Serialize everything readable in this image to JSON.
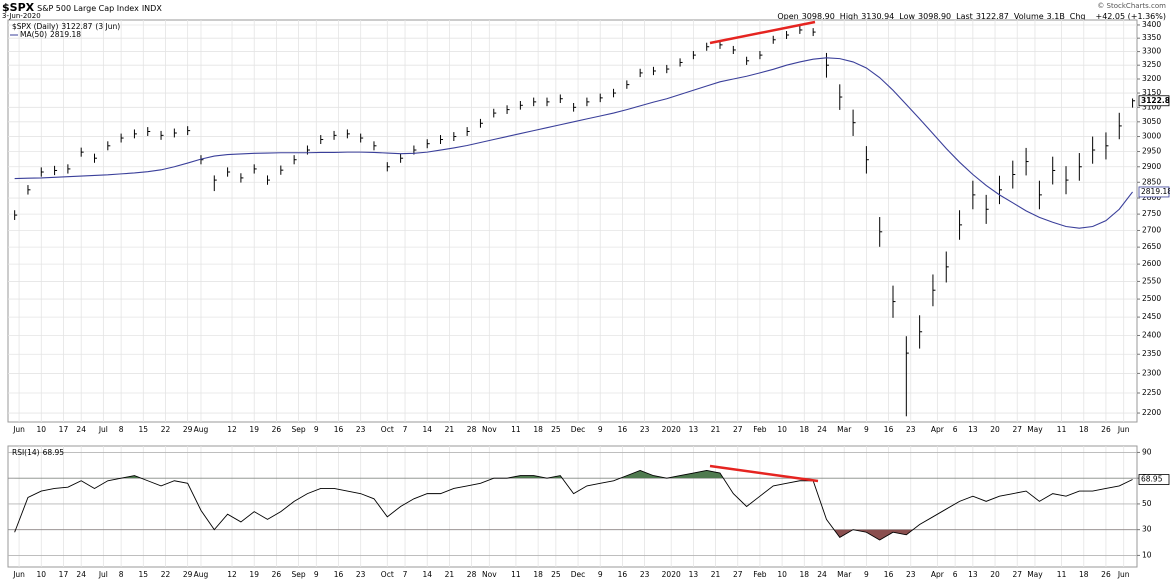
{
  "header": {
    "symbol": "$SPX",
    "name": "S&P 500 Large Cap Index",
    "exchange": "INDX",
    "date": "3-Jun-2020",
    "quote": [
      [
        "Open",
        "3098.90"
      ],
      [
        "High",
        "3130.94"
      ],
      [
        "Low",
        "3098.90"
      ],
      [
        "Last",
        "3122.87"
      ],
      [
        "Volume",
        "3.1B"
      ],
      [
        "Chg",
        "+42.05 (+1.36%)"
      ]
    ],
    "credit": "© StockCharts.com"
  },
  "chart_data": [
    {
      "type": "ohlc",
      "log_scale": true,
      "grid": true,
      "grid_color": "#e4e4e4",
      "last_date": "(3 Jun)",
      "x": [
        0,
        3,
        6,
        9,
        12,
        15,
        18,
        21,
        24,
        27,
        30,
        33,
        36,
        39,
        42,
        45,
        48,
        51,
        54,
        57,
        60,
        63,
        66,
        69,
        72,
        75,
        78,
        81,
        84,
        87,
        90,
        93,
        96,
        99,
        102,
        105,
        108,
        111,
        114,
        117,
        120,
        123,
        126,
        129,
        132,
        135,
        138,
        141,
        144,
        147,
        150,
        153,
        156,
        159,
        162,
        165,
        168,
        171,
        174,
        177,
        180,
        183,
        186,
        189,
        192,
        195,
        198,
        201,
        204,
        207,
        210,
        213,
        216,
        219,
        222,
        225,
        228,
        231,
        234,
        237,
        240,
        243,
        246,
        249,
        252
      ],
      "series": [
        {
          "name": "$SPX (Daily)",
          "color": "#000000",
          "high": [
            2762,
            2841,
            2898,
            2903,
            2908,
            2963,
            2943,
            2984,
            3010,
            3024,
            3032,
            3019,
            3027,
            3035,
            2938,
            2872,
            2898,
            2879,
            2908,
            2872,
            2904,
            2938,
            2970,
            3005,
            3019,
            3024,
            3010,
            2984,
            2915,
            2943,
            2970,
            2991,
            3005,
            3015,
            3032,
            3060,
            3095,
            3107,
            3122,
            3134,
            3134,
            3145,
            3115,
            3134,
            3148,
            3165,
            3195,
            3237,
            3244,
            3251,
            3275,
            3302,
            3333,
            3340,
            3321,
            3281,
            3302,
            3359,
            3377,
            3396,
            3388,
            3295,
            3181,
            3092,
            2968,
            2741,
            2538,
            2398,
            2455,
            2570,
            2637,
            2762,
            2855,
            2810,
            2871,
            2920,
            2962,
            2855,
            2933,
            2902,
            2945,
            3000,
            3014,
            3081,
            3130.94
          ],
          "low": [
            2732,
            2811,
            2868,
            2873,
            2878,
            2933,
            2913,
            2954,
            2980,
            2994,
            3002,
            2989,
            2997,
            3005,
            2908,
            2822,
            2868,
            2849,
            2878,
            2842,
            2874,
            2908,
            2940,
            2975,
            2989,
            2994,
            2980,
            2954,
            2885,
            2913,
            2940,
            2961,
            2975,
            2985,
            3002,
            3030,
            3065,
            3077,
            3092,
            3104,
            3104,
            3115,
            3085,
            3104,
            3118,
            3135,
            3165,
            3207,
            3214,
            3221,
            3245,
            3272,
            3303,
            3310,
            3291,
            3251,
            3272,
            3329,
            3347,
            3366,
            3358,
            3205,
            3091,
            3002,
            2878,
            2651,
            2448,
            2192,
            2365,
            2480,
            2547,
            2672,
            2765,
            2720,
            2781,
            2830,
            2872,
            2765,
            2843,
            2812,
            2855,
            2910,
            2924,
            2991,
            3098.9
          ],
          "close": [
            2747,
            2826,
            2883,
            2888,
            2893,
            2948,
            2928,
            2969,
            2995,
            3009,
            3017,
            3004,
            3012,
            3020,
            2923,
            2857,
            2883,
            2864,
            2893,
            2857,
            2889,
            2923,
            2955,
            2990,
            3004,
            3009,
            2995,
            2969,
            2900,
            2928,
            2955,
            2976,
            2990,
            3000,
            3017,
            3045,
            3080,
            3092,
            3107,
            3119,
            3119,
            3130,
            3100,
            3119,
            3133,
            3150,
            3180,
            3222,
            3229,
            3236,
            3260,
            3287,
            3318,
            3325,
            3306,
            3266,
            3287,
            3344,
            3362,
            3381,
            3373,
            3250,
            3136,
            3047,
            2923,
            2696,
            2493,
            2353,
            2410,
            2525,
            2592,
            2717,
            2810,
            2765,
            2826,
            2875,
            2917,
            2810,
            2888,
            2857,
            2900,
            2955,
            2969,
            3036,
            3122.87
          ]
        },
        {
          "name": "MA(50)",
          "color": "#3a3f9a",
          "values": [
            2862,
            2863,
            2864,
            2866,
            2868,
            2870,
            2872,
            2874,
            2877,
            2880,
            2884,
            2890,
            2900,
            2912,
            2925,
            2935,
            2940,
            2942,
            2944,
            2945,
            2946,
            2946,
            2946,
            2947,
            2947,
            2948,
            2948,
            2947,
            2945,
            2943,
            2944,
            2948,
            2955,
            2962,
            2970,
            2980,
            2990,
            3000,
            3010,
            3020,
            3030,
            3040,
            3050,
            3060,
            3070,
            3080,
            3092,
            3105,
            3118,
            3130,
            3145,
            3160,
            3175,
            3190,
            3200,
            3210,
            3222,
            3235,
            3250,
            3262,
            3272,
            3277,
            3274,
            3262,
            3240,
            3205,
            3160,
            3110,
            3060,
            3010,
            2960,
            2915,
            2875,
            2840,
            2810,
            2785,
            2760,
            2740,
            2725,
            2712,
            2707,
            2712,
            2730,
            2765,
            2819.18
          ]
        }
      ],
      "xlim": [
        -1.5,
        253
      ],
      "ylim": [
        2178,
        3419
      ],
      "yticks": [
        2200,
        2250,
        2300,
        2350,
        2400,
        2450,
        2500,
        2550,
        2600,
        2650,
        2700,
        2750,
        2800,
        2850,
        2900,
        2950,
        3000,
        3050,
        3100,
        3150,
        3200,
        3250,
        3300,
        3350,
        3400
      ],
      "xticks": [
        {
          "value": 1,
          "label": "Jun"
        },
        {
          "value": 6,
          "label": "10"
        },
        {
          "value": 11,
          "label": "17"
        },
        {
          "value": 15,
          "label": "24"
        },
        {
          "value": 20,
          "label": "Jul"
        },
        {
          "value": 24,
          "label": "8"
        },
        {
          "value": 29,
          "label": "15"
        },
        {
          "value": 34,
          "label": "22"
        },
        {
          "value": 39,
          "label": "29"
        },
        {
          "value": 42,
          "label": "Aug"
        },
        {
          "value": 49,
          "label": "12"
        },
        {
          "value": 54,
          "label": "19"
        },
        {
          "value": 59,
          "label": "26"
        },
        {
          "value": 64,
          "label": "Sep"
        },
        {
          "value": 68,
          "label": "9"
        },
        {
          "value": 73,
          "label": "16"
        },
        {
          "value": 78,
          "label": "23"
        },
        {
          "value": 84,
          "label": "Oct"
        },
        {
          "value": 88,
          "label": "7"
        },
        {
          "value": 93,
          "label": "14"
        },
        {
          "value": 98,
          "label": "21"
        },
        {
          "value": 103,
          "label": "28"
        },
        {
          "value": 107,
          "label": "Nov"
        },
        {
          "value": 113,
          "label": "11"
        },
        {
          "value": 118,
          "label": "18"
        },
        {
          "value": 122,
          "label": "25"
        },
        {
          "value": 127,
          "label": "Dec"
        },
        {
          "value": 132,
          "label": "9"
        },
        {
          "value": 137,
          "label": "16"
        },
        {
          "value": 142,
          "label": "23"
        },
        {
          "value": 148,
          "label": "2020"
        },
        {
          "value": 153,
          "label": "13"
        },
        {
          "value": 158,
          "label": "21"
        },
        {
          "value": 163,
          "label": "27"
        },
        {
          "value": 168,
          "label": "Feb"
        },
        {
          "value": 173,
          "label": "10"
        },
        {
          "value": 178,
          "label": "18"
        },
        {
          "value": 182,
          "label": "24"
        },
        {
          "value": 187,
          "label": "Mar"
        },
        {
          "value": 192,
          "label": "9"
        },
        {
          "value": 197,
          "label": "16"
        },
        {
          "value": 202,
          "label": "23"
        },
        {
          "value": 208,
          "label": "Apr"
        },
        {
          "value": 212,
          "label": "6"
        },
        {
          "value": 216,
          "label": "13"
        },
        {
          "value": 221,
          "label": "20"
        },
        {
          "value": 226,
          "label": "27"
        },
        {
          "value": 230,
          "label": "May"
        },
        {
          "value": 236,
          "label": "11"
        },
        {
          "value": 241,
          "label": "18"
        },
        {
          "value": 246,
          "label": "26"
        },
        {
          "value": 250,
          "label": "Jun"
        }
      ]
    },
    {
      "type": "line",
      "grid": true,
      "grid_color": "#e4e4e4",
      "overbought": 70,
      "oversold": 30,
      "overbought_color": "#4f7a4f",
      "oversold_color": "#8a4f4f",
      "x": [
        0,
        3,
        6,
        9,
        12,
        15,
        18,
        21,
        24,
        27,
        30,
        33,
        36,
        39,
        42,
        45,
        48,
        51,
        54,
        57,
        60,
        63,
        66,
        69,
        72,
        75,
        78,
        81,
        84,
        87,
        90,
        93,
        96,
        99,
        102,
        105,
        108,
        111,
        114,
        117,
        120,
        123,
        126,
        129,
        132,
        135,
        138,
        141,
        144,
        147,
        150,
        153,
        156,
        159,
        162,
        165,
        168,
        171,
        174,
        177,
        180,
        183,
        186,
        189,
        192,
        195,
        198,
        201,
        204,
        207,
        210,
        213,
        216,
        219,
        222,
        225,
        228,
        231,
        234,
        237,
        240,
        243,
        246,
        249,
        252
      ],
      "series": [
        {
          "name": "RSI(14)",
          "color": "#000000",
          "values": [
            28,
            55,
            60,
            62,
            63,
            68,
            62,
            68,
            70,
            72,
            68,
            64,
            68,
            66,
            45,
            30,
            42,
            36,
            44,
            38,
            44,
            52,
            58,
            62,
            62,
            60,
            58,
            54,
            40,
            48,
            54,
            58,
            58,
            62,
            64,
            66,
            70,
            70,
            72,
            72,
            70,
            72,
            58,
            64,
            66,
            68,
            72,
            76,
            72,
            70,
            72,
            74,
            76,
            74,
            58,
            48,
            56,
            64,
            66,
            68,
            68,
            38,
            24,
            30,
            28,
            22,
            28,
            26,
            34,
            40,
            46,
            52,
            56,
            52,
            56,
            58,
            60,
            52,
            58,
            56,
            60,
            60,
            62,
            64,
            68.95
          ]
        }
      ],
      "xlim": [
        -1.5,
        253
      ],
      "ylim": [
        1,
        95
      ],
      "yticks": [
        10,
        30,
        50,
        70,
        90
      ],
      "xticks": [
        {
          "value": 1,
          "label": "Jun"
        },
        {
          "value": 6,
          "label": "10"
        },
        {
          "value": 11,
          "label": "17"
        },
        {
          "value": 15,
          "label": "24"
        },
        {
          "value": 20,
          "label": "Jul"
        },
        {
          "value": 24,
          "label": "8"
        },
        {
          "value": 29,
          "label": "15"
        },
        {
          "value": 34,
          "label": "22"
        },
        {
          "value": 39,
          "label": "29"
        },
        {
          "value": 42,
          "label": "Aug"
        },
        {
          "value": 49,
          "label": "12"
        },
        {
          "value": 54,
          "label": "19"
        },
        {
          "value": 59,
          "label": "26"
        },
        {
          "value": 64,
          "label": "Sep"
        },
        {
          "value": 68,
          "label": "9"
        },
        {
          "value": 73,
          "label": "16"
        },
        {
          "value": 78,
          "label": "23"
        },
        {
          "value": 84,
          "label": "Oct"
        },
        {
          "value": 88,
          "label": "7"
        },
        {
          "value": 93,
          "label": "14"
        },
        {
          "value": 98,
          "label": "21"
        },
        {
          "value": 103,
          "label": "28"
        },
        {
          "value": 107,
          "label": "Nov"
        },
        {
          "value": 113,
          "label": "11"
        },
        {
          "value": 118,
          "label": "18"
        },
        {
          "value": 122,
          "label": "25"
        },
        {
          "value": 127,
          "label": "Dec"
        },
        {
          "value": 132,
          "label": "9"
        },
        {
          "value": 137,
          "label": "16"
        },
        {
          "value": 142,
          "label": "23"
        },
        {
          "value": 148,
          "label": "2020"
        },
        {
          "value": 153,
          "label": "13"
        },
        {
          "value": 158,
          "label": "21"
        },
        {
          "value": 163,
          "label": "27"
        },
        {
          "value": 168,
          "label": "Feb"
        },
        {
          "value": 173,
          "label": "10"
        },
        {
          "value": 178,
          "label": "18"
        },
        {
          "value": 182,
          "label": "24"
        },
        {
          "value": 187,
          "label": "Mar"
        },
        {
          "value": 192,
          "label": "9"
        },
        {
          "value": 197,
          "label": "16"
        },
        {
          "value": 202,
          "label": "23"
        },
        {
          "value": 208,
          "label": "Apr"
        },
        {
          "value": 212,
          "label": "6"
        },
        {
          "value": 216,
          "label": "13"
        },
        {
          "value": 221,
          "label": "20"
        },
        {
          "value": 226,
          "label": "27"
        },
        {
          "value": 230,
          "label": "May"
        },
        {
          "value": 236,
          "label": "11"
        },
        {
          "value": 241,
          "label": "18"
        },
        {
          "value": 246,
          "label": "26"
        },
        {
          "value": 250,
          "label": "Jun"
        }
      ]
    }
  ]
}
